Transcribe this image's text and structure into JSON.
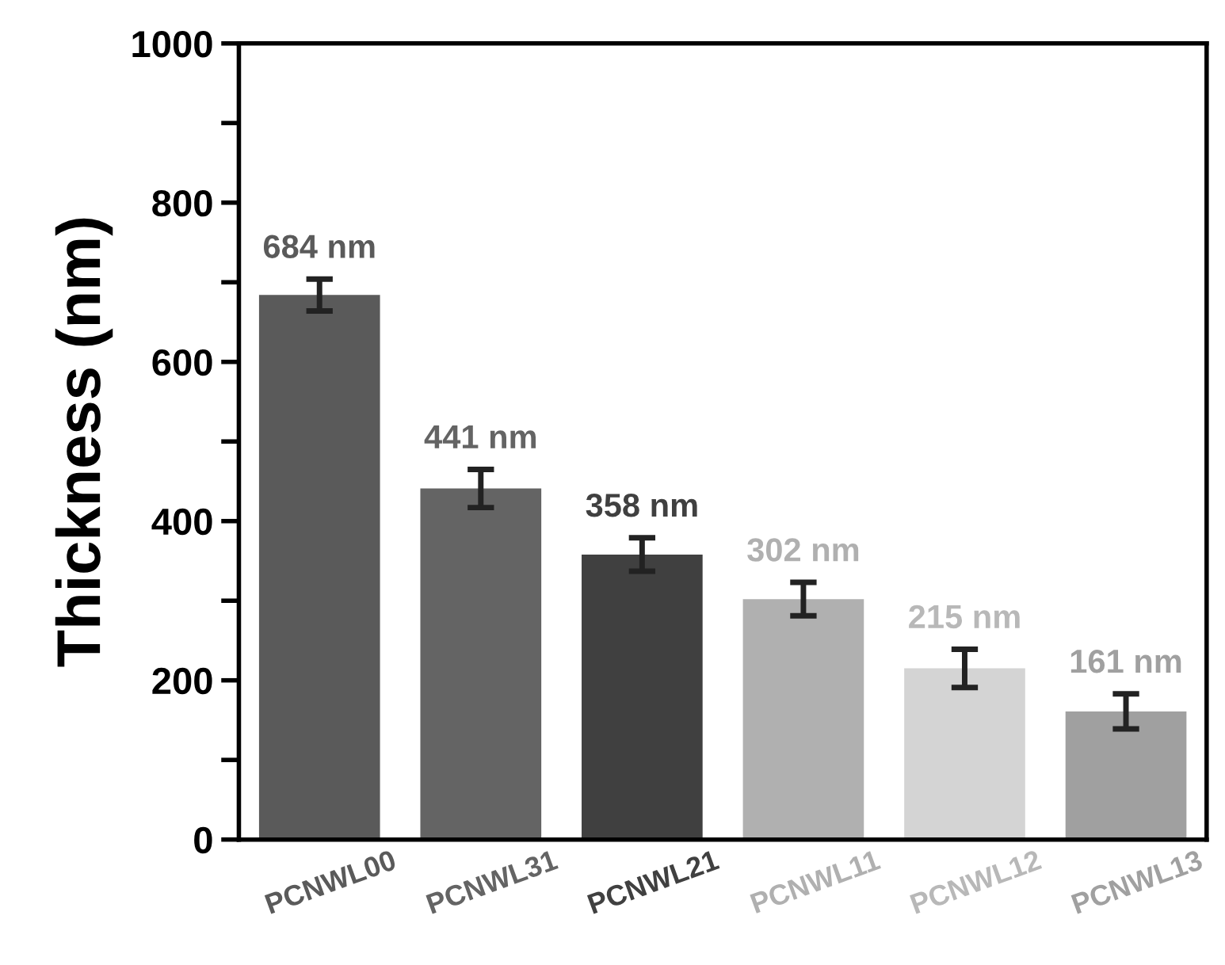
{
  "chart_data": {
    "type": "bar",
    "ylabel": "Thickness (nm)",
    "categories": [
      "PCNWL00",
      "PCNWL31",
      "PCNWL21",
      "PCNWL11",
      "PCNWL12",
      "PCNWL13"
    ],
    "values": [
      684,
      441,
      358,
      302,
      215,
      161
    ],
    "errors": [
      20,
      24,
      21,
      21,
      24,
      22
    ],
    "colors": [
      "#5a5a5a",
      "#646464",
      "#404040",
      "#b0b0b0",
      "#d4d4d4",
      "#a0a0a0"
    ],
    "value_labels": [
      "684 nm",
      "441 nm",
      "358 nm",
      "302 nm",
      "215 nm",
      "161 nm"
    ],
    "ylim": [
      0,
      1000
    ],
    "yticks": [
      0,
      {
        "value": 100,
        "label": null
      },
      200,
      {
        "value": 300,
        "label": null
      },
      400,
      {
        "value": 500,
        "label": null
      },
      600,
      {
        "value": 700,
        "label": null
      },
      800,
      {
        "value": 900,
        "label": null
      },
      1000
    ],
    "grid": false,
    "legend": false
  }
}
